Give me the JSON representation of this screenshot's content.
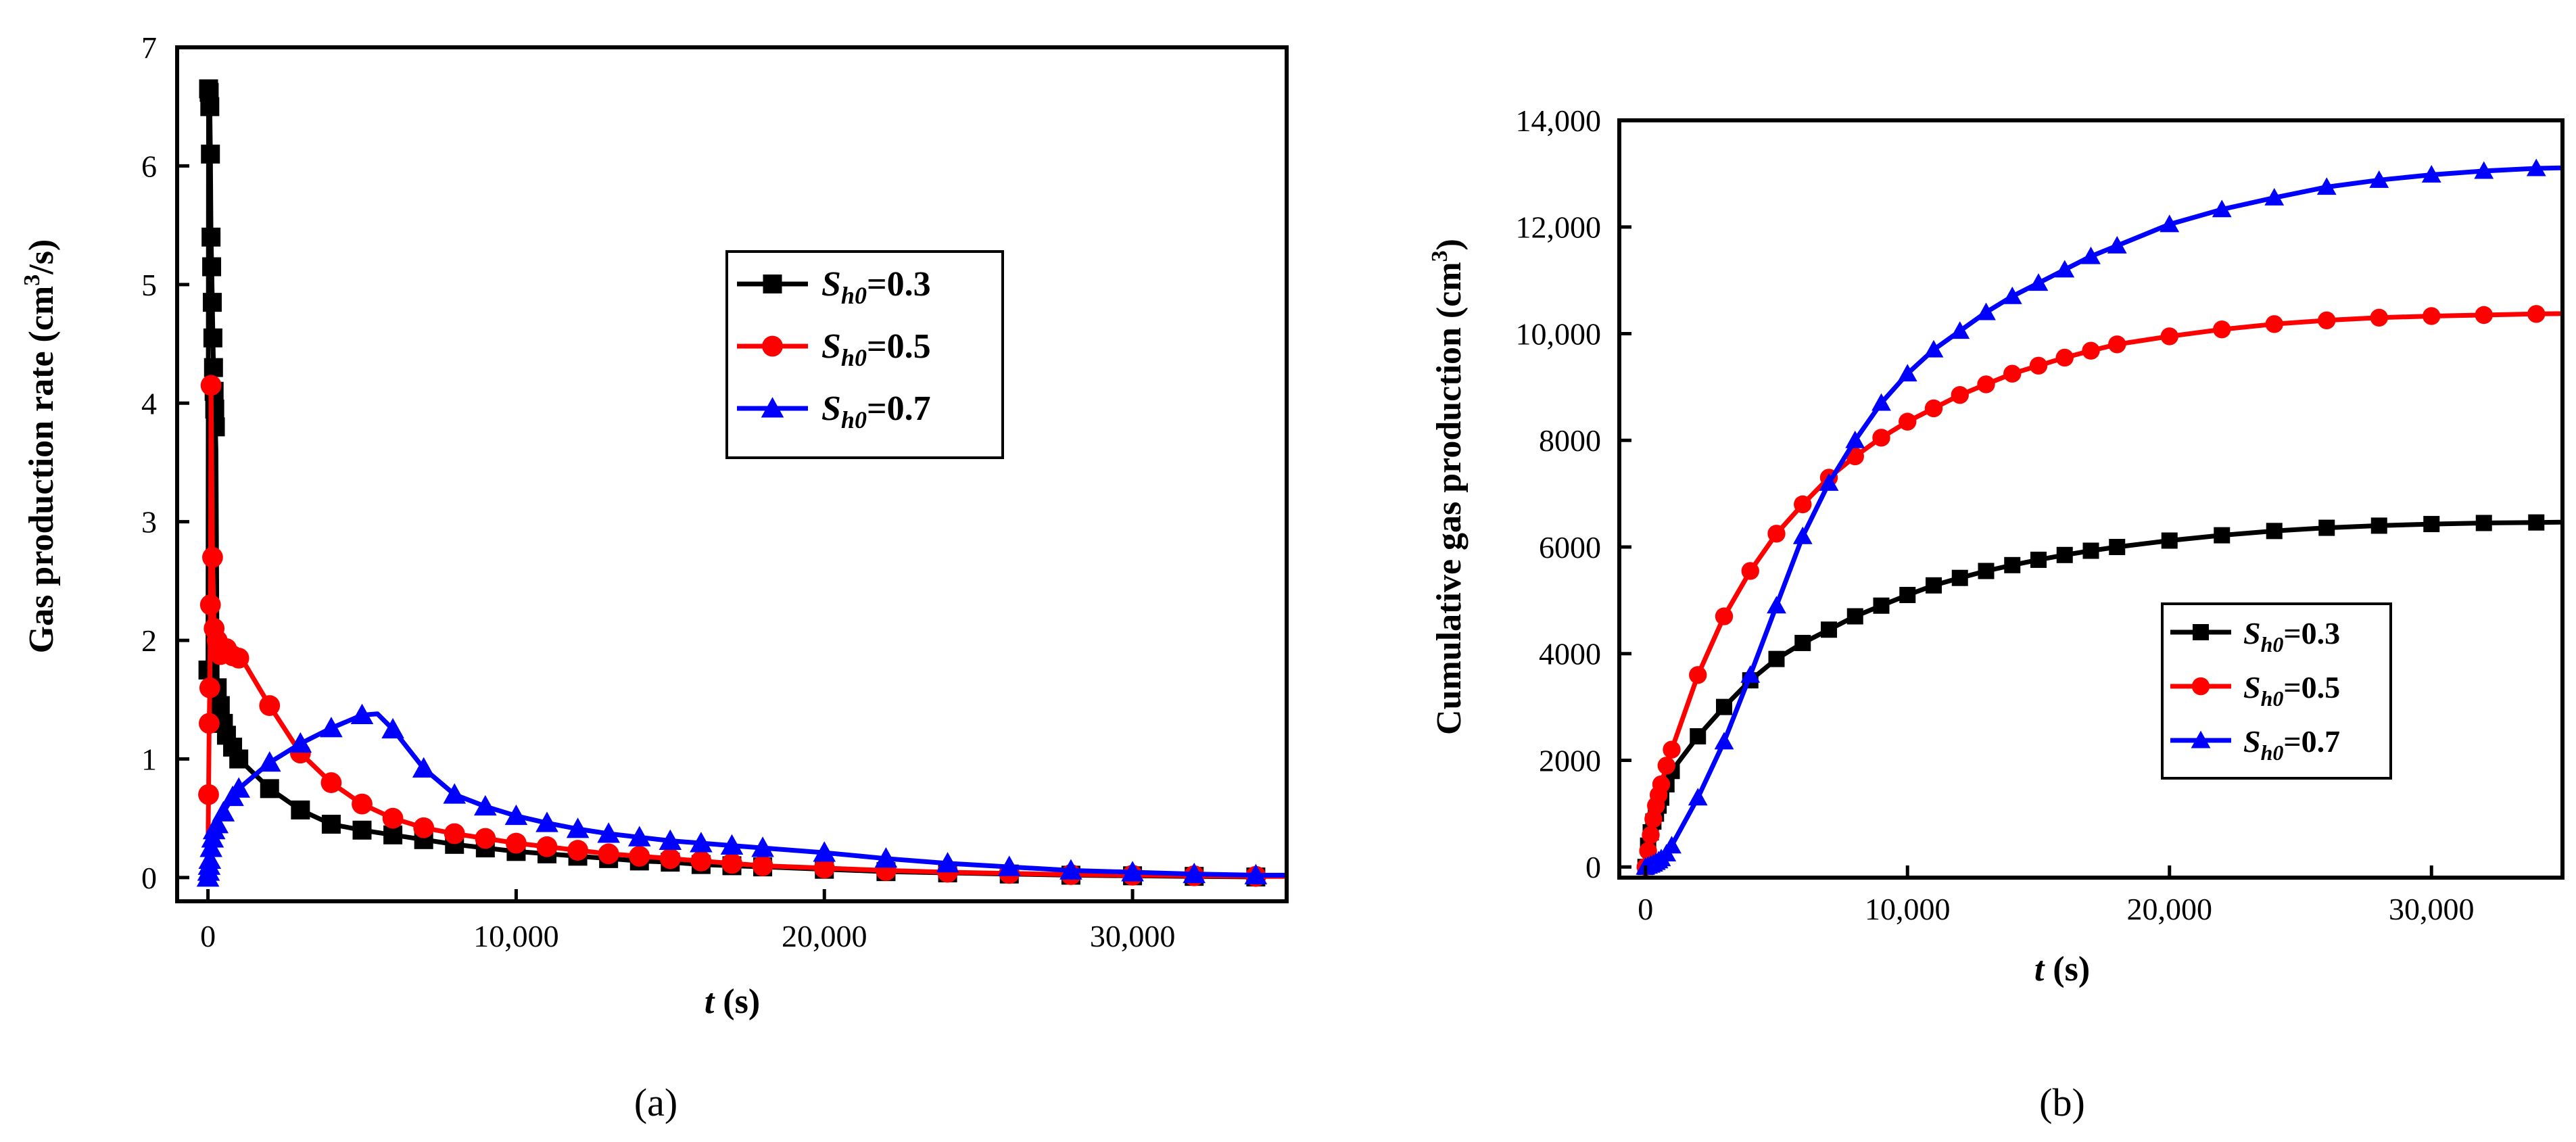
{
  "chart_data": [
    {
      "type": "line",
      "panel": "a",
      "caption": "(a)",
      "xlabel_var": "t",
      "xlabel_unit": " (s)",
      "ylabel_main": "Gas production rate (cm",
      "ylabel_sup": "3",
      "ylabel_end": "/s)",
      "xlim": [
        -1000,
        35000
      ],
      "ylim": [
        -0.2,
        7
      ],
      "x_ticks": [
        0,
        10000,
        20000,
        30000
      ],
      "x_tick_labels": [
        "0",
        "10,000",
        "20,000",
        "30,000"
      ],
      "y_ticks": [
        0,
        1,
        2,
        3,
        4,
        5,
        6,
        7
      ],
      "y_tick_labels": [
        "0",
        "1",
        "2",
        "3",
        "4",
        "5",
        "6",
        "7"
      ],
      "legend_position": "center-right",
      "series": [
        {
          "name": "Sh0=0.3",
          "label_S": "S",
          "label_sub": "h0",
          "label_val": "=0.3",
          "color": "#000000",
          "marker": "square",
          "x": [
            0,
            20,
            40,
            60,
            80,
            100,
            120,
            140,
            160,
            180,
            200,
            220,
            240,
            260,
            300,
            400,
            500,
            600,
            800,
            1000,
            2000,
            3000,
            4000,
            5000,
            6000,
            7000,
            8000,
            9000,
            10000,
            11000,
            12000,
            13000,
            14000,
            15000,
            16000,
            17000,
            18000,
            20000,
            22000,
            24000,
            26000,
            28000,
            30000,
            32000,
            34000
          ],
          "y": [
            1.75,
            6.65,
            6.62,
            6.5,
            6.1,
            5.4,
            5.15,
            4.85,
            4.55,
            4.3,
            4.1,
            3.95,
            3.8,
            3.6,
            1.6,
            1.45,
            1.3,
            1.2,
            1.1,
            1.0,
            0.75,
            0.57,
            0.45,
            0.4,
            0.36,
            0.32,
            0.28,
            0.25,
            0.22,
            0.2,
            0.18,
            0.16,
            0.14,
            0.13,
            0.11,
            0.1,
            0.09,
            0.07,
            0.05,
            0.04,
            0.03,
            0.02,
            0.015,
            0.01,
            0.005
          ],
          "marker_x": [
            0,
            20,
            40,
            60,
            80,
            100,
            120,
            140,
            160,
            180,
            200,
            220,
            240,
            300,
            400,
            500,
            600,
            800,
            1000,
            2000,
            3000,
            4000,
            5000,
            6000,
            7000,
            8000,
            9000,
            10000,
            11000,
            12000,
            13000,
            14000,
            15000,
            16000,
            17000,
            18000,
            20000,
            22000,
            24000,
            26000,
            28000,
            30000,
            32000,
            34000
          ]
        },
        {
          "name": "Sh0=0.5",
          "label_S": "S",
          "label_sub": "h0",
          "label_val": "=0.5",
          "color": "#ff0000",
          "marker": "circle",
          "x": [
            0,
            10,
            20,
            40,
            60,
            80,
            100,
            150,
            200,
            300,
            400,
            600,
            800,
            1000,
            1200,
            2000,
            3000,
            4000,
            5000,
            6000,
            7000,
            8000,
            9000,
            10000,
            11000,
            12000,
            13000,
            14000,
            15000,
            16000,
            17000,
            18000,
            20000,
            22000,
            24000,
            26000,
            28000,
            30000,
            32000,
            34000,
            35000
          ],
          "y": [
            0.0,
            0.45,
            0.7,
            1.3,
            1.6,
            2.3,
            4.15,
            2.7,
            2.1,
            2.0,
            1.88,
            1.93,
            1.87,
            1.85,
            1.8,
            1.45,
            1.05,
            0.8,
            0.62,
            0.5,
            0.42,
            0.37,
            0.33,
            0.29,
            0.26,
            0.23,
            0.2,
            0.18,
            0.16,
            0.14,
            0.12,
            0.1,
            0.08,
            0.06,
            0.045,
            0.035,
            0.025,
            0.02,
            0.015,
            0.01,
            0.01
          ],
          "marker_x": [
            20,
            40,
            60,
            80,
            100,
            150,
            200,
            300,
            400,
            600,
            800,
            1000,
            2000,
            3000,
            4000,
            5000,
            6000,
            7000,
            8000,
            9000,
            10000,
            11000,
            12000,
            13000,
            14000,
            15000,
            16000,
            17000,
            18000,
            20000,
            22000,
            24000,
            26000,
            28000,
            30000,
            32000,
            34000
          ]
        },
        {
          "name": "Sh0=0.7",
          "label_S": "S",
          "label_sub": "h0",
          "label_val": "=0.7",
          "color": "#0000ff",
          "marker": "triangle",
          "x": [
            0,
            20,
            40,
            60,
            100,
            150,
            200,
            300,
            500,
            800,
            1000,
            2000,
            3000,
            4000,
            5000,
            5500,
            6000,
            7000,
            8000,
            9000,
            10000,
            11000,
            12000,
            13000,
            14000,
            15000,
            16000,
            17000,
            18000,
            20000,
            22000,
            24000,
            26000,
            28000,
            30000,
            32000,
            34000,
            35000
          ],
          "y": [
            0.0,
            0.05,
            0.1,
            0.15,
            0.25,
            0.33,
            0.4,
            0.45,
            0.55,
            0.68,
            0.75,
            0.97,
            1.13,
            1.26,
            1.37,
            1.38,
            1.25,
            0.92,
            0.7,
            0.6,
            0.52,
            0.46,
            0.41,
            0.37,
            0.34,
            0.31,
            0.29,
            0.27,
            0.25,
            0.21,
            0.16,
            0.12,
            0.09,
            0.06,
            0.045,
            0.03,
            0.02,
            0.02
          ],
          "marker_x": [
            0,
            20,
            40,
            60,
            100,
            150,
            200,
            300,
            500,
            800,
            1000,
            2000,
            3000,
            4000,
            5000,
            6000,
            7000,
            8000,
            9000,
            10000,
            11000,
            12000,
            13000,
            14000,
            15000,
            16000,
            17000,
            18000,
            20000,
            22000,
            24000,
            26000,
            28000,
            30000,
            32000,
            34000
          ]
        }
      ]
    },
    {
      "type": "line",
      "panel": "b",
      "caption": "(b)",
      "xlabel_var": "t",
      "xlabel_unit": " (s)",
      "ylabel_main": "Cumulative gas production (cm",
      "ylabel_sup": "3",
      "ylabel_end": ")",
      "xlim": [
        -1000,
        35000
      ],
      "ylim": [
        -200,
        14000
      ],
      "x_ticks": [
        0,
        10000,
        20000,
        30000
      ],
      "x_tick_labels": [
        "0",
        "10,000",
        "20,000",
        "30,000"
      ],
      "y_ticks": [
        0,
        2000,
        4000,
        6000,
        8000,
        10000,
        12000,
        14000
      ],
      "y_tick_labels": [
        "0",
        "2000",
        "4000",
        "6000",
        "8000",
        "10,000",
        "12,000",
        "14,000"
      ],
      "legend_position": "lower-right",
      "series": [
        {
          "name": "Sh0=0.3",
          "label_S": "S",
          "label_sub": "h0",
          "label_val": "=0.3",
          "color": "#000000",
          "marker": "square",
          "x": [
            0,
            100,
            200,
            300,
            400,
            500,
            600,
            800,
            1000,
            2000,
            3000,
            4000,
            5000,
            6000,
            7000,
            8000,
            9000,
            10000,
            11000,
            12000,
            13000,
            14000,
            15000,
            16000,
            17000,
            18000,
            20000,
            22000,
            24000,
            26000,
            28000,
            30000,
            32000,
            34000,
            35000
          ],
          "y": [
            0,
            400,
            650,
            850,
            1000,
            1150,
            1300,
            1550,
            1800,
            2450,
            3000,
            3500,
            3900,
            4200,
            4450,
            4700,
            4900,
            5100,
            5280,
            5420,
            5550,
            5660,
            5760,
            5850,
            5930,
            6000,
            6120,
            6220,
            6300,
            6360,
            6400,
            6430,
            6450,
            6460,
            6465
          ],
          "marker_x": [
            0,
            100,
            200,
            300,
            400,
            500,
            600,
            800,
            1000,
            2000,
            3000,
            4000,
            5000,
            6000,
            7000,
            8000,
            9000,
            10000,
            11000,
            12000,
            13000,
            14000,
            15000,
            16000,
            17000,
            18000,
            20000,
            22000,
            24000,
            26000,
            28000,
            30000,
            32000,
            34000
          ]
        },
        {
          "name": "Sh0=0.5",
          "label_S": "S",
          "label_sub": "h0",
          "label_val": "=0.5",
          "color": "#ff0000",
          "marker": "circle",
          "x": [
            0,
            100,
            200,
            300,
            400,
            500,
            600,
            800,
            1000,
            2000,
            3000,
            4000,
            5000,
            6000,
            7000,
            8000,
            9000,
            10000,
            11000,
            12000,
            13000,
            14000,
            15000,
            16000,
            17000,
            18000,
            20000,
            22000,
            24000,
            26000,
            28000,
            30000,
            32000,
            34000,
            35000
          ],
          "y": [
            0,
            300,
            600,
            900,
            1150,
            1350,
            1550,
            1900,
            2200,
            3600,
            4700,
            5550,
            6250,
            6800,
            7300,
            7700,
            8050,
            8350,
            8600,
            8850,
            9050,
            9250,
            9400,
            9550,
            9680,
            9800,
            9950,
            10080,
            10180,
            10250,
            10300,
            10330,
            10350,
            10370,
            10375
          ],
          "marker_x": [
            0,
            100,
            200,
            300,
            400,
            500,
            600,
            800,
            1000,
            2000,
            3000,
            4000,
            5000,
            6000,
            7000,
            8000,
            9000,
            10000,
            11000,
            12000,
            13000,
            14000,
            15000,
            16000,
            17000,
            18000,
            20000,
            22000,
            24000,
            26000,
            28000,
            30000,
            32000,
            34000
          ]
        },
        {
          "name": "Sh0=0.7",
          "label_S": "S",
          "label_sub": "h0",
          "label_val": "=0.7",
          "color": "#0000ff",
          "marker": "triangle",
          "x": [
            0,
            100,
            200,
            300,
            400,
            500,
            600,
            800,
            1000,
            2000,
            3000,
            4000,
            5000,
            6000,
            7000,
            8000,
            9000,
            10000,
            11000,
            12000,
            13000,
            14000,
            15000,
            16000,
            17000,
            18000,
            20000,
            22000,
            24000,
            26000,
            28000,
            30000,
            32000,
            34000,
            35000
          ],
          "y": [
            0,
            20,
            40,
            60,
            90,
            120,
            160,
            250,
            400,
            1300,
            2350,
            3600,
            4900,
            6200,
            7200,
            8000,
            8700,
            9250,
            9700,
            10050,
            10400,
            10700,
            10950,
            11200,
            11450,
            11650,
            12050,
            12330,
            12550,
            12750,
            12880,
            12980,
            13050,
            13100,
            13110
          ],
          "marker_x": [
            0,
            100,
            200,
            300,
            400,
            500,
            600,
            800,
            1000,
            2000,
            3000,
            4000,
            5000,
            6000,
            7000,
            8000,
            9000,
            10000,
            11000,
            12000,
            13000,
            14000,
            15000,
            16000,
            17000,
            18000,
            20000,
            22000,
            24000,
            26000,
            28000,
            30000,
            32000,
            34000
          ]
        }
      ]
    }
  ]
}
